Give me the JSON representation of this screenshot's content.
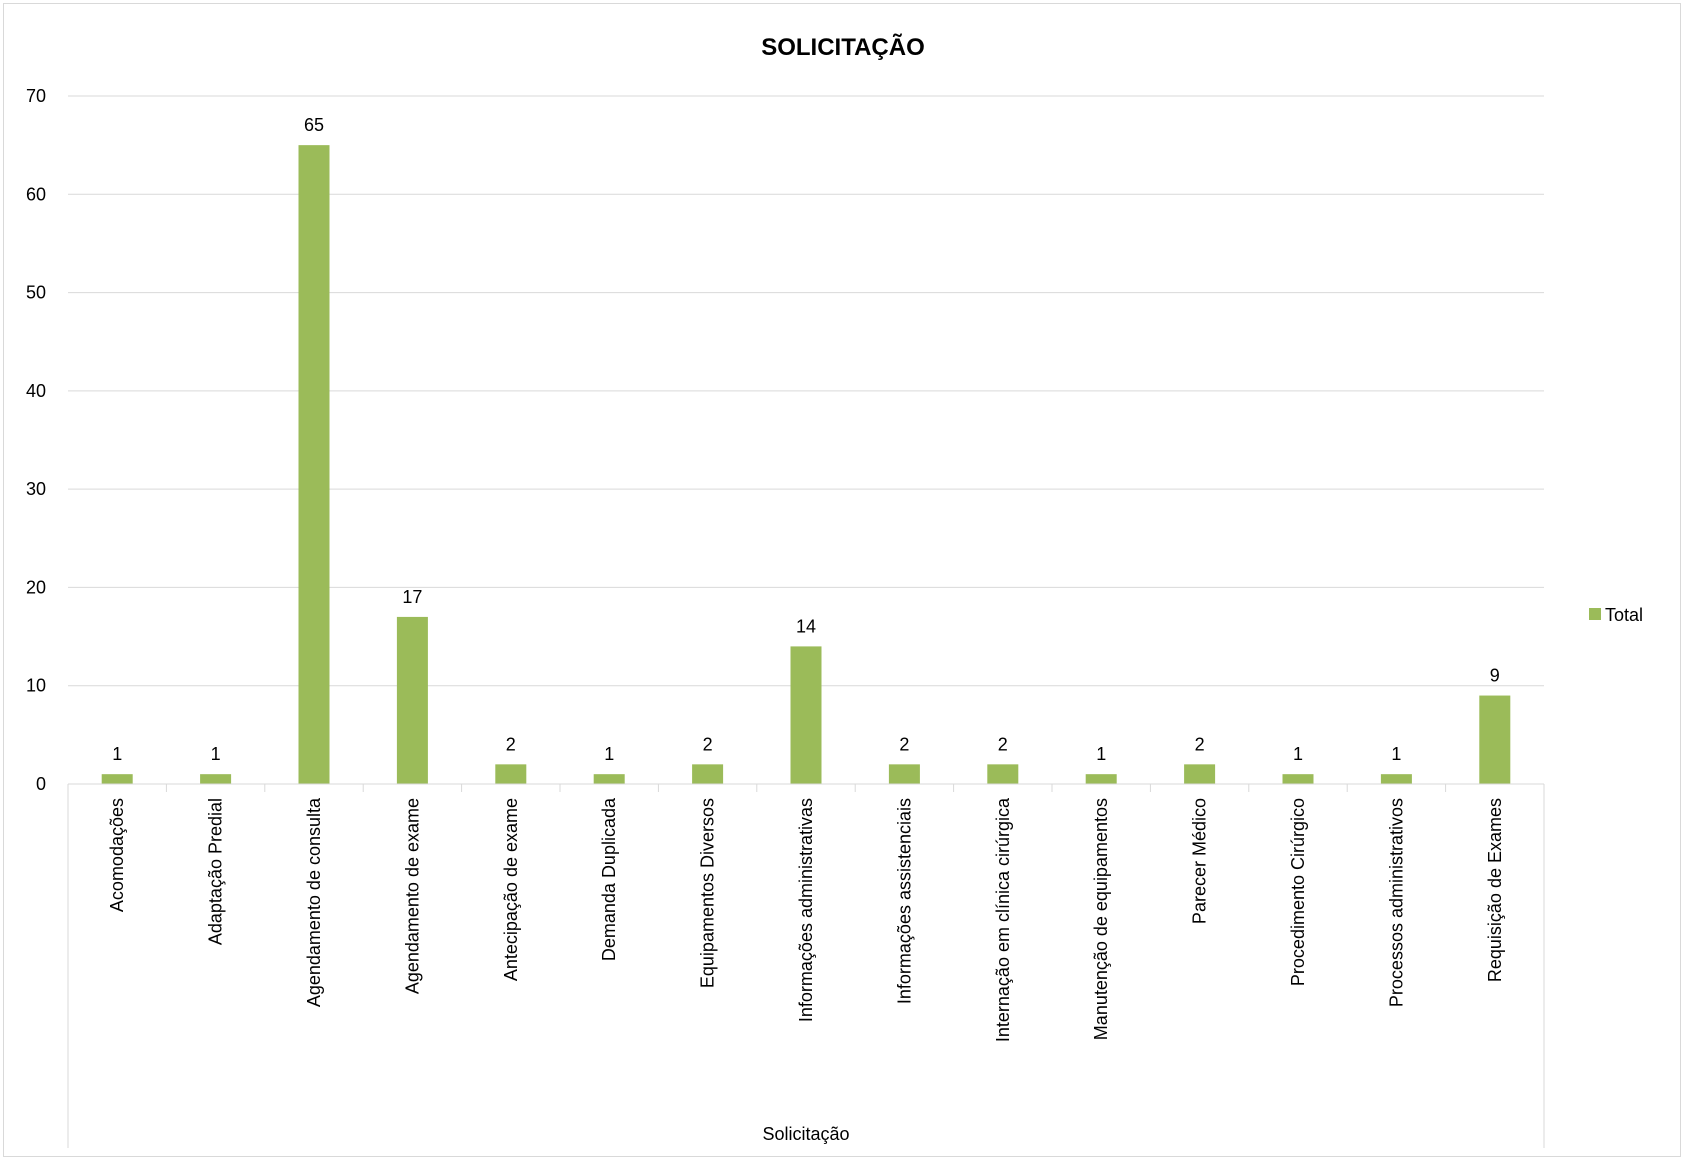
{
  "chart_data": {
    "type": "bar",
    "title": "SOLICITAÇÃO",
    "xlabel": "Solicitação",
    "ylabel": "",
    "ylim": [
      0,
      70
    ],
    "yticks": [
      0,
      10,
      20,
      30,
      40,
      50,
      60,
      70
    ],
    "grid": true,
    "legend_position": "right",
    "categories": [
      "Acomodações",
      "Adaptação Predial",
      "Agendamento de consulta",
      "Agendamento de exame",
      "Antecipação de exame",
      "Demanda Duplicada",
      "Equipamentos Diversos",
      "Informações administrativas",
      "Informações assistenciais",
      "Internação em clínica cirúrgica",
      "Manutenção de equipamentos",
      "Parecer Médico",
      "Procedimento Cirúrgico",
      "Processos administrativos",
      "Requisição de Exames"
    ],
    "series": [
      {
        "name": "Total",
        "color": "#9bbb59",
        "values": [
          1,
          1,
          65,
          17,
          2,
          1,
          2,
          14,
          2,
          2,
          1,
          2,
          1,
          1,
          9
        ]
      }
    ]
  }
}
